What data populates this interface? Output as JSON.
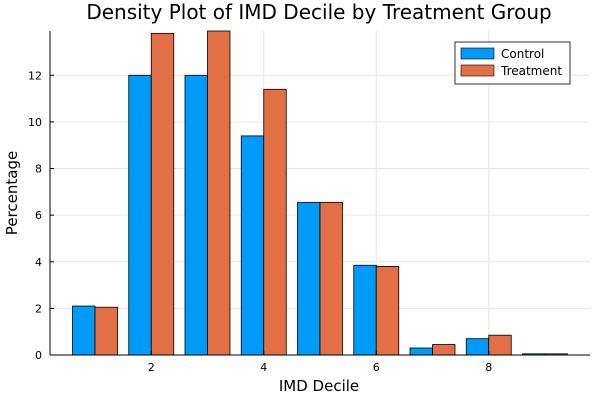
{
  "chart_data": {
    "type": "bar",
    "title": "Density Plot of IMD Decile by Treatment Group",
    "xlabel": "IMD Decile",
    "ylabel": "Percentage",
    "xlim": [
      0.2,
      9.8
    ],
    "ylim": [
      0,
      13.9
    ],
    "x_ticks": [
      2,
      4,
      6,
      8
    ],
    "y_ticks": [
      0,
      2,
      4,
      6,
      8,
      10,
      12
    ],
    "grid": true,
    "legend_position": "top-right",
    "categories": [
      1,
      2,
      3,
      4,
      5,
      6,
      7,
      8,
      9
    ],
    "series": [
      {
        "name": "Control",
        "color": "#009af9",
        "values": [
          2.1,
          12.0,
          12.0,
          9.4,
          6.55,
          3.85,
          0.3,
          0.7,
          0.05
        ]
      },
      {
        "name": "Treatment",
        "color": "#e26f46",
        "values": [
          2.05,
          13.8,
          13.9,
          11.4,
          6.55,
          3.8,
          0.45,
          0.85,
          0.05
        ]
      }
    ]
  }
}
